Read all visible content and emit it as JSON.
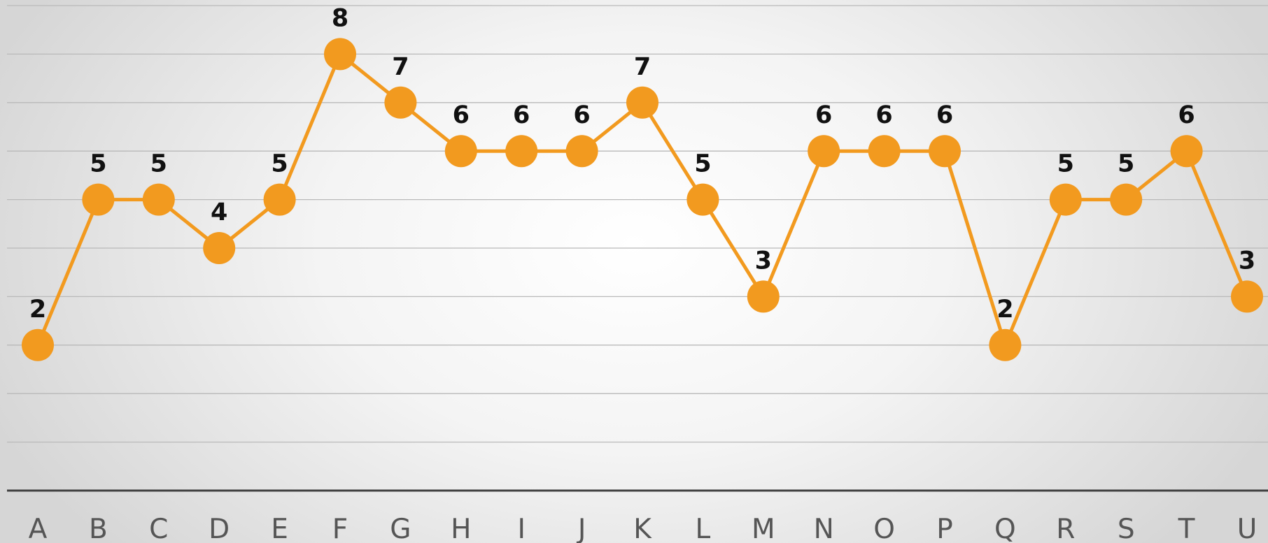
{
  "chart_data": {
    "type": "line",
    "categories": [
      "A",
      "B",
      "C",
      "D",
      "E",
      "F",
      "G",
      "H",
      "I",
      "J",
      "K",
      "L",
      "M",
      "N",
      "O",
      "P",
      "Q",
      "R",
      "S",
      "T",
      "U"
    ],
    "series": [
      {
        "values": [
          2,
          5,
          5,
          4,
          5,
          8,
          7,
          6,
          6,
          6,
          7,
          5,
          3,
          6,
          6,
          6,
          2,
          5,
          5,
          6,
          3
        ]
      }
    ],
    "ylim": [
      -1,
      9
    ],
    "grid": true,
    "legend": "none",
    "data_labels": true,
    "colors": {
      "line": "#F29A1F",
      "marker": "#F29A1F",
      "gridline": "#B9B9B9",
      "axis": "#404040",
      "label": "#111111",
      "tick": "#555555"
    }
  }
}
